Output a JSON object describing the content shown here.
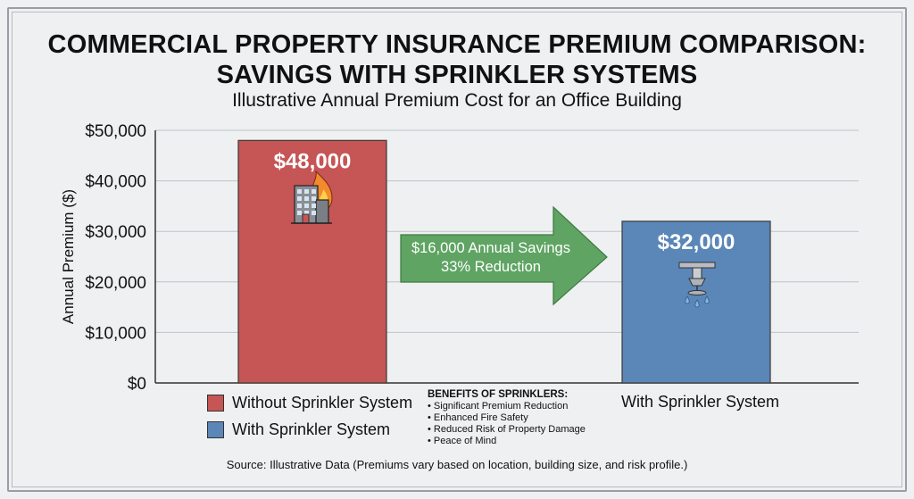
{
  "title_line1": "COMMERCIAL PROPERTY INSURANCE PREMIUM COMPARISON:",
  "title_line2": "SAVINGS WITH SPRINKLER SYSTEMS",
  "subtitle": "Illustrative Annual Premium Cost for an Office Building",
  "annotation": {
    "line1": "$16,000 Annual Savings",
    "line2": "33% Reduction",
    "color": "#5fa463"
  },
  "legend": [
    {
      "label": "Without Sprinkler System",
      "color": "#c65555"
    },
    {
      "label": "With Sprinkler System",
      "color": "#5b86b8"
    }
  ],
  "category_label": "With Sprinkler System",
  "benefits": {
    "heading": "BENEFITS OF SPRINKLERS:",
    "items": [
      "• Significant Premium Reduction",
      "• Enhanced Fire Safety",
      "• Reduced Risk of Property Damage",
      "• Peace of Mind"
    ]
  },
  "source": "Source: Illustrative Data (Premiums vary based on location, building size, and risk profile.)",
  "icons": [
    "burning-building-icon",
    "sprinkler-head-icon"
  ],
  "chart_data": {
    "type": "bar",
    "categories": [
      "Without Sprinkler System",
      "With Sprinkler System"
    ],
    "values": [
      48000,
      32000
    ],
    "data_labels": [
      "$48,000",
      "$32,000"
    ],
    "colors": [
      "#c65555",
      "#5b86b8"
    ],
    "ylabel": "Annual Premium ($)",
    "ylim": [
      0,
      50000
    ],
    "yticks": [
      0,
      10000,
      20000,
      30000,
      40000,
      50000
    ],
    "ytick_labels": [
      "$0",
      "$10,000",
      "$20,000",
      "$30,000",
      "$40,000",
      "$50,000"
    ],
    "grid": true,
    "legend_position": "bottom-left"
  }
}
